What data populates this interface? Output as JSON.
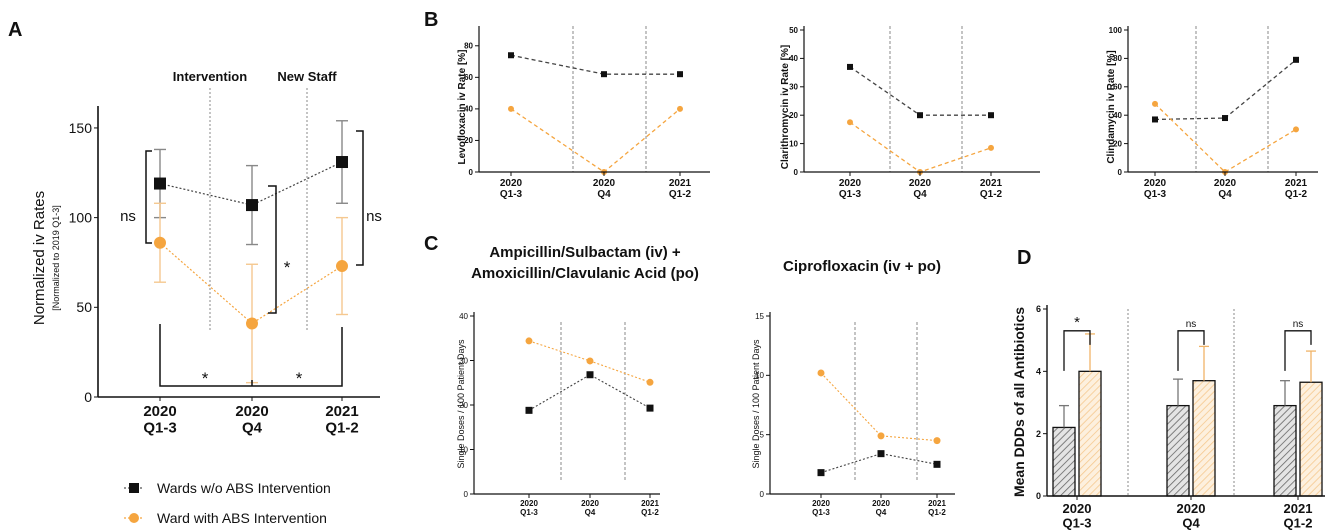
{
  "colors": {
    "black_series": "#111111",
    "orange_series": "#f5a53f",
    "grid": "#888888"
  },
  "panel_letters": {
    "a": "A",
    "b": "B",
    "c": "C",
    "d": "D"
  },
  "chart_data": [
    {
      "id": "A",
      "type": "line",
      "ylabel": "Normalized iv Rates",
      "ylabel2": "[Normalized to 2019 Q1-3]",
      "categories": [
        [
          "2020",
          "Q1-3"
        ],
        [
          "2020",
          "Q4"
        ],
        [
          "2021",
          "Q1-2"
        ]
      ],
      "ylim": [
        0,
        160
      ],
      "yticks": [
        0,
        50,
        100,
        150
      ],
      "events": [
        "Intervention",
        "New Staff"
      ],
      "series": [
        {
          "name": "Wards w/o ABS Intervention",
          "color": "black",
          "values": [
            119,
            107,
            131
          ],
          "errors": [
            19,
            22,
            23
          ]
        },
        {
          "name": "Ward with ABS Intervention",
          "color": "orange",
          "values": [
            86,
            41,
            73
          ],
          "errors": [
            22,
            33,
            27
          ]
        }
      ],
      "annotations": [
        "ns",
        "*",
        "ns",
        "*",
        "*"
      ]
    },
    {
      "id": "B1",
      "type": "line",
      "ylabel": "Levofloxacin iv Rate [%]",
      "categories": [
        [
          "2020",
          "Q1-3"
        ],
        [
          "2020",
          "Q4"
        ],
        [
          "2021",
          "Q1-2"
        ]
      ],
      "ylim": [
        0,
        90
      ],
      "yticks": [
        0,
        20,
        40,
        60,
        80
      ],
      "series": [
        {
          "color": "black",
          "values": [
            74,
            62,
            62
          ]
        },
        {
          "color": "orange",
          "values": [
            40,
            0,
            40
          ]
        }
      ]
    },
    {
      "id": "B2",
      "type": "line",
      "ylabel": "Clarithromycin iv Rate [%]",
      "categories": [
        [
          "2020",
          "Q1-3"
        ],
        [
          "2020",
          "Q4"
        ],
        [
          "2021",
          "Q1-2"
        ]
      ],
      "ylim": [
        0,
        50
      ],
      "yticks": [
        0,
        10,
        20,
        30,
        40,
        50
      ],
      "series": [
        {
          "color": "black",
          "values": [
            37,
            20,
            20
          ]
        },
        {
          "color": "orange",
          "values": [
            17.5,
            0,
            8.5
          ]
        }
      ]
    },
    {
      "id": "B3",
      "type": "line",
      "ylabel": "Clindamycin iv Rate [%]",
      "categories": [
        [
          "2020",
          "Q1-3"
        ],
        [
          "2020",
          "Q4"
        ],
        [
          "2021",
          "Q1-2"
        ]
      ],
      "ylim": [
        0,
        100
      ],
      "yticks": [
        0,
        20,
        40,
        60,
        80,
        100
      ],
      "series": [
        {
          "color": "black",
          "values": [
            37,
            38,
            79
          ]
        },
        {
          "color": "orange",
          "values": [
            48,
            0,
            30
          ]
        }
      ]
    },
    {
      "id": "C1",
      "type": "line",
      "title_lines": [
        "Ampicillin/Sulbactam (iv) +",
        "Amoxicillin/Clavulanic Acid (po)"
      ],
      "ylabel": "Single Doses / 100 Patient Days",
      "categories": [
        [
          "2020",
          "Q1-3"
        ],
        [
          "2020",
          "Q4"
        ],
        [
          "2021",
          "Q1-2"
        ]
      ],
      "ylim": [
        0,
        40
      ],
      "yticks": [
        0,
        10,
        20,
        30,
        40
      ],
      "series": [
        {
          "color": "black",
          "values": [
            18.8,
            26.8,
            19.3
          ]
        },
        {
          "color": "orange",
          "values": [
            34.4,
            29.9,
            25.1
          ]
        }
      ]
    },
    {
      "id": "C2",
      "type": "line",
      "title_lines": [
        "Ciprofloxacin (iv + po)"
      ],
      "ylabel": "Single Doses / 100 Patient Days",
      "categories": [
        [
          "2020",
          "Q1-3"
        ],
        [
          "2020",
          "Q4"
        ],
        [
          "2021",
          "Q1-2"
        ]
      ],
      "ylim": [
        0,
        15
      ],
      "yticks": [
        0,
        5,
        10,
        15
      ],
      "series": [
        {
          "color": "black",
          "values": [
            1.8,
            3.4,
            2.5
          ]
        },
        {
          "color": "orange",
          "values": [
            10.2,
            4.9,
            4.5
          ]
        }
      ]
    },
    {
      "id": "D",
      "type": "bar",
      "ylabel": "Mean DDDs of all Antibiotics",
      "categories": [
        [
          "2020",
          "Q1-3"
        ],
        [
          "2020",
          "Q4"
        ],
        [
          "2021",
          "Q1-2"
        ]
      ],
      "ylim": [
        0,
        6
      ],
      "yticks": [
        0,
        2,
        4,
        6
      ],
      "series": [
        {
          "color": "black",
          "values": [
            2.2,
            2.9,
            2.9
          ],
          "errors": [
            0.7,
            0.85,
            0.8
          ]
        },
        {
          "color": "orange",
          "values": [
            4.0,
            3.7,
            3.65
          ],
          "errors": [
            1.2,
            1.1,
            1.0
          ]
        }
      ],
      "significance": [
        "*",
        "ns",
        "ns"
      ]
    }
  ]
}
